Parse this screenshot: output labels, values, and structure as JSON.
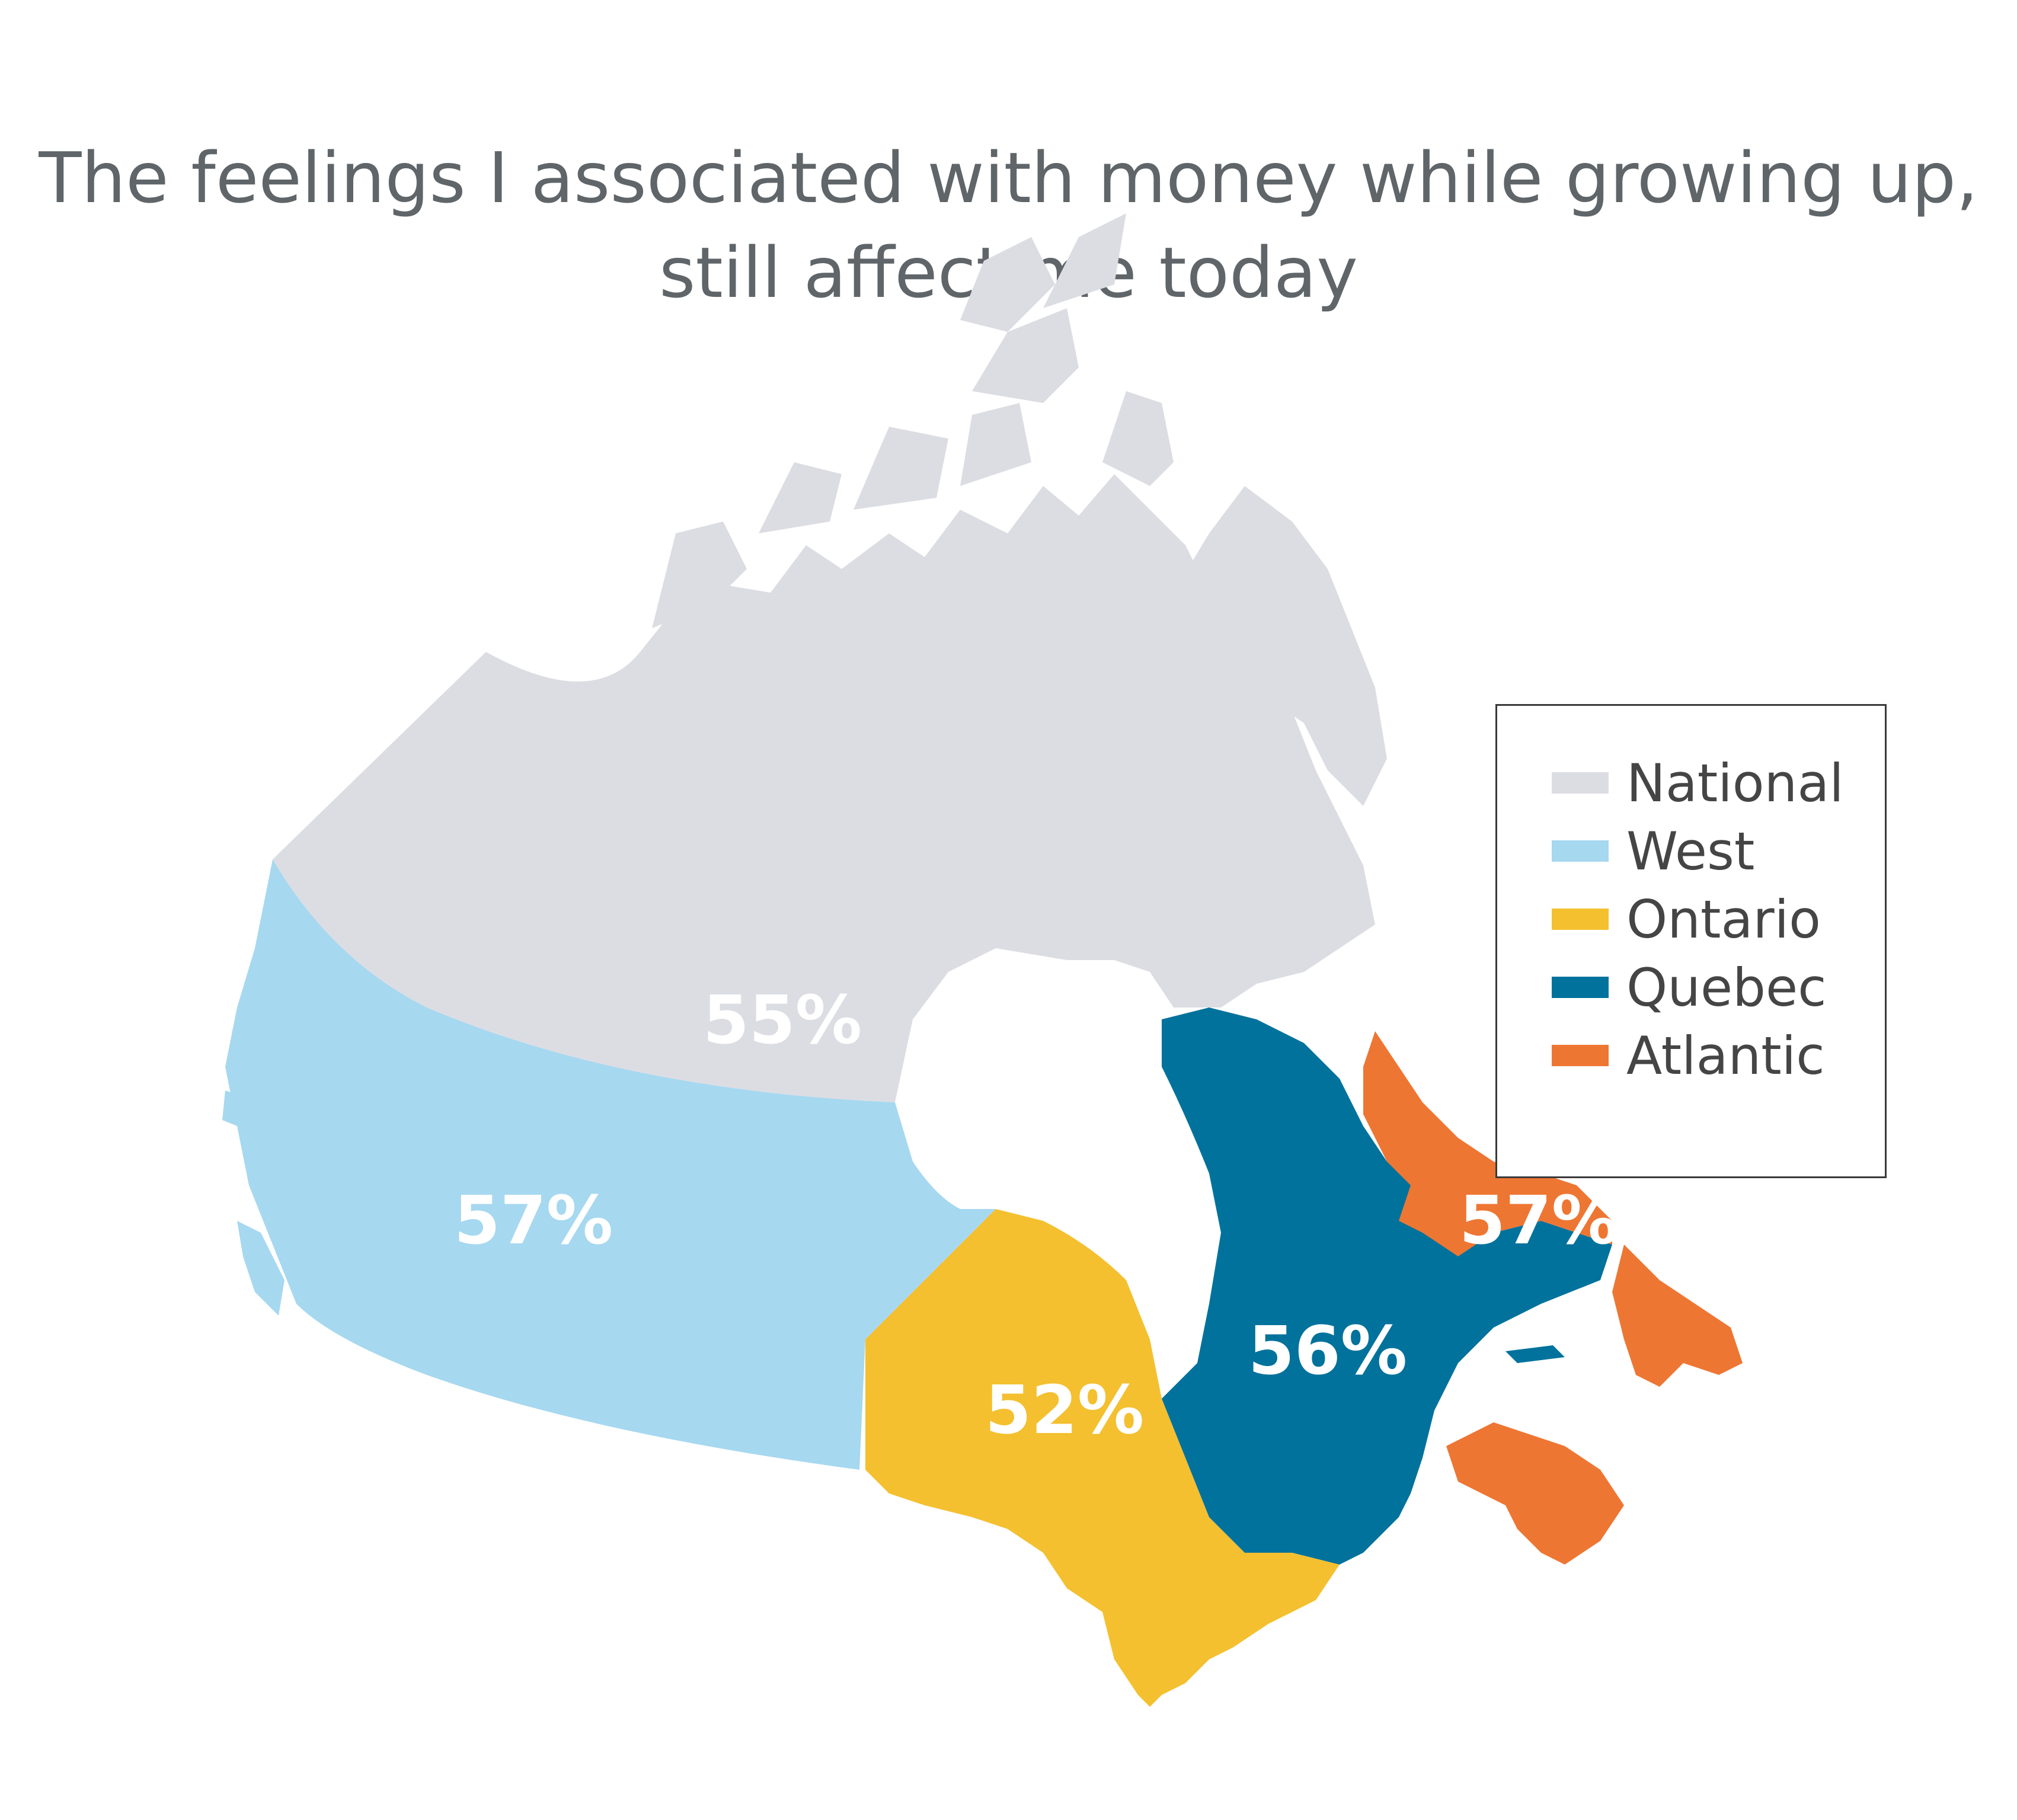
{
  "title": {
    "line1": "The feelings I associated with money while growing up,",
    "line2": "still affect me today"
  },
  "regions": {
    "national": {
      "label": "55%",
      "value": 55,
      "color": "#dcdde3"
    },
    "west": {
      "label": "57%",
      "value": 57,
      "color": "#a6d8f0"
    },
    "ontario": {
      "label": "52%",
      "value": 52,
      "color": "#f4c030"
    },
    "quebec": {
      "label": "56%",
      "value": 56,
      "color": "#00729c"
    },
    "atlantic": {
      "label": "57%",
      "value": 57,
      "color": "#ee7633"
    }
  },
  "legend": {
    "items": [
      {
        "label": "National",
        "color": "#dcdde3"
      },
      {
        "label": "West",
        "color": "#a6d8f0"
      },
      {
        "label": "Ontario",
        "color": "#f4c030"
      },
      {
        "label": "Quebec",
        "color": "#00729c"
      },
      {
        "label": "Atlantic",
        "color": "#ee7633"
      }
    ]
  }
}
